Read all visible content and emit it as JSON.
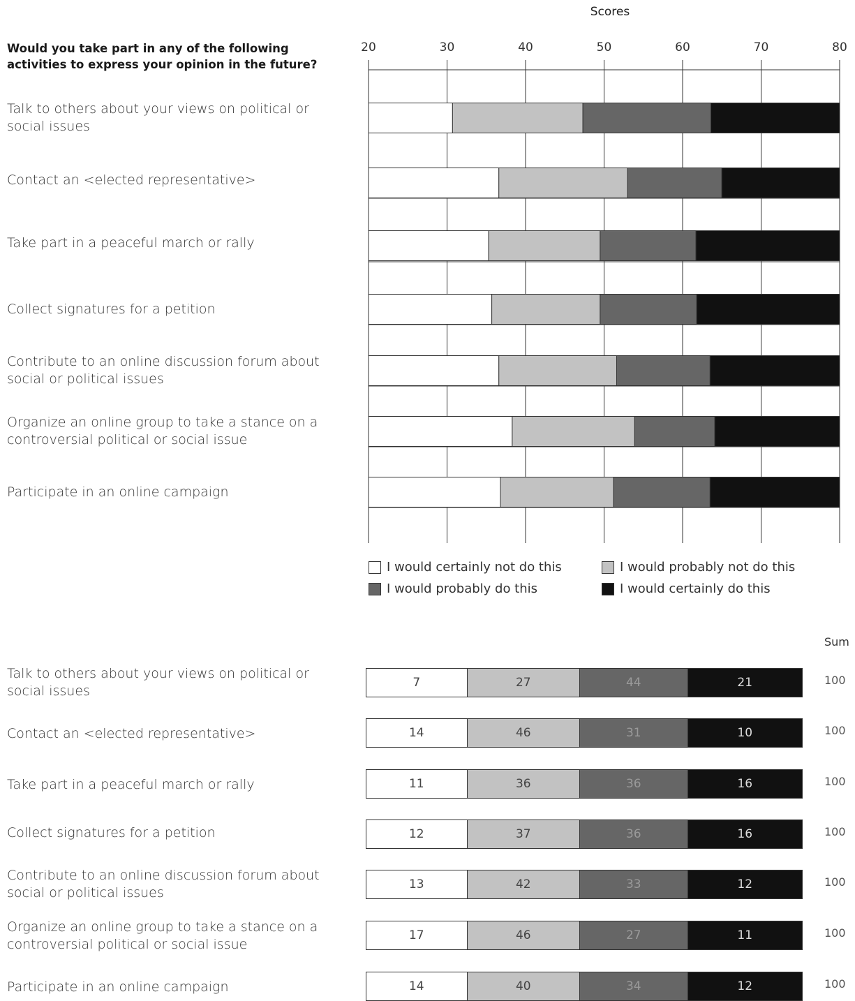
{
  "chart_data": {
    "type": "bar",
    "stacked": true,
    "orientation": "horizontal",
    "axis_title": "Scores",
    "question": "Would you take part in any of the following activities to express your opinion in the future?",
    "xlim": [
      20,
      80
    ],
    "xticks": [
      20,
      30,
      40,
      50,
      60,
      70,
      80
    ],
    "grid": true,
    "categories": [
      "Talk to others about your views on political or social issues",
      "Contact an <elected representative>",
      "Take part in a peaceful march or rally",
      "Collect signatures for a petition",
      "Contribute to an online discussion forum about social or political issues",
      "Organize an online group to take a stance on a controversial political or social issue",
      "Participate in an online campaign"
    ],
    "boundaries": [
      [
        30.7,
        47.3,
        63.6
      ],
      [
        36.6,
        53.0,
        65.0
      ],
      [
        35.3,
        49.5,
        61.7
      ],
      [
        35.7,
        49.5,
        61.8
      ],
      [
        36.6,
        51.6,
        63.5
      ],
      [
        38.3,
        53.9,
        64.1
      ],
      [
        36.8,
        51.2,
        63.5
      ]
    ],
    "series": [
      {
        "name": "I would certainly not do this",
        "color": "#ffffff"
      },
      {
        "name": "I would probably not do this",
        "color": "#c2c2c2"
      },
      {
        "name": "I would probably do this",
        "color": "#666666"
      },
      {
        "name": "I would certainly do this",
        "color": "#111111"
      }
    ]
  },
  "percent_table": {
    "sum_header": "Sum",
    "rows": [
      {
        "values": [
          "7",
          "27",
          "44",
          "21"
        ],
        "sum": "100"
      },
      {
        "values": [
          "14",
          "46",
          "31",
          "10"
        ],
        "sum": "100"
      },
      {
        "values": [
          "11",
          "36",
          "36",
          "16"
        ],
        "sum": "100"
      },
      {
        "values": [
          "12",
          "37",
          "36",
          "16"
        ],
        "sum": "100"
      },
      {
        "values": [
          "13",
          "42",
          "33",
          "12"
        ],
        "sum": "100"
      },
      {
        "values": [
          "17",
          "46",
          "27",
          "11"
        ],
        "sum": "100"
      },
      {
        "values": [
          "14",
          "40",
          "34",
          "12"
        ],
        "sum": "100"
      }
    ]
  }
}
